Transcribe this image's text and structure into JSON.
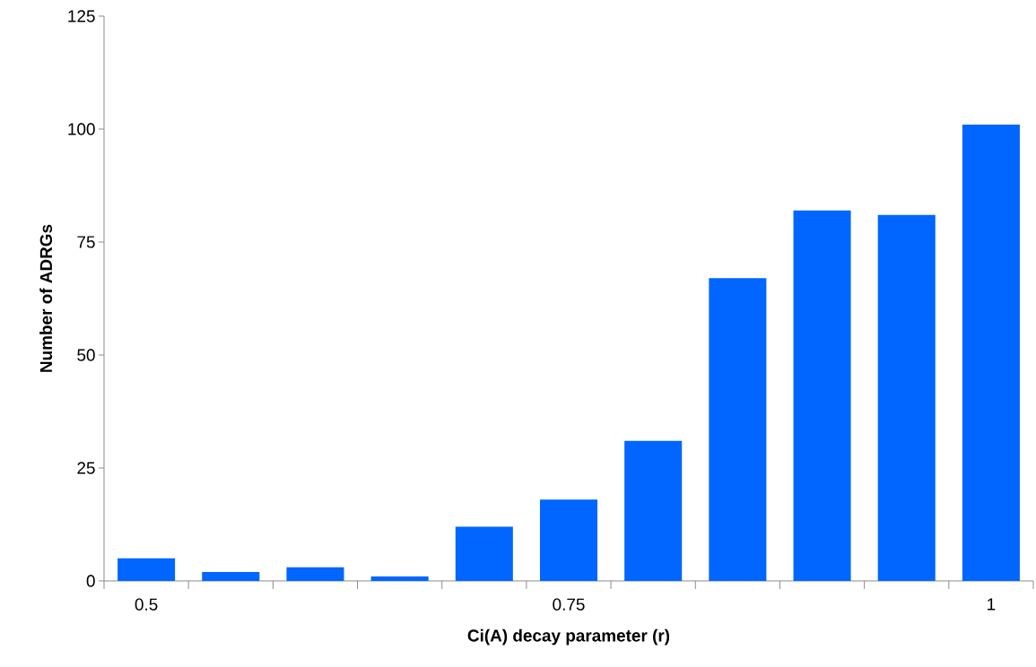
{
  "chart_data": {
    "type": "bar",
    "xlabel": "Ci(A) decay parameter (r)",
    "ylabel": "Number of ADRGs",
    "categories": [
      "0.5",
      null,
      null,
      null,
      null,
      "0.75",
      null,
      null,
      null,
      null,
      "1"
    ],
    "values": [
      5,
      2,
      3,
      1,
      12,
      18,
      31,
      67,
      82,
      81,
      101
    ],
    "color": "#0066ff",
    "ylim": [
      0,
      125
    ],
    "yticks": [
      0,
      25,
      50,
      75,
      100,
      125
    ]
  }
}
